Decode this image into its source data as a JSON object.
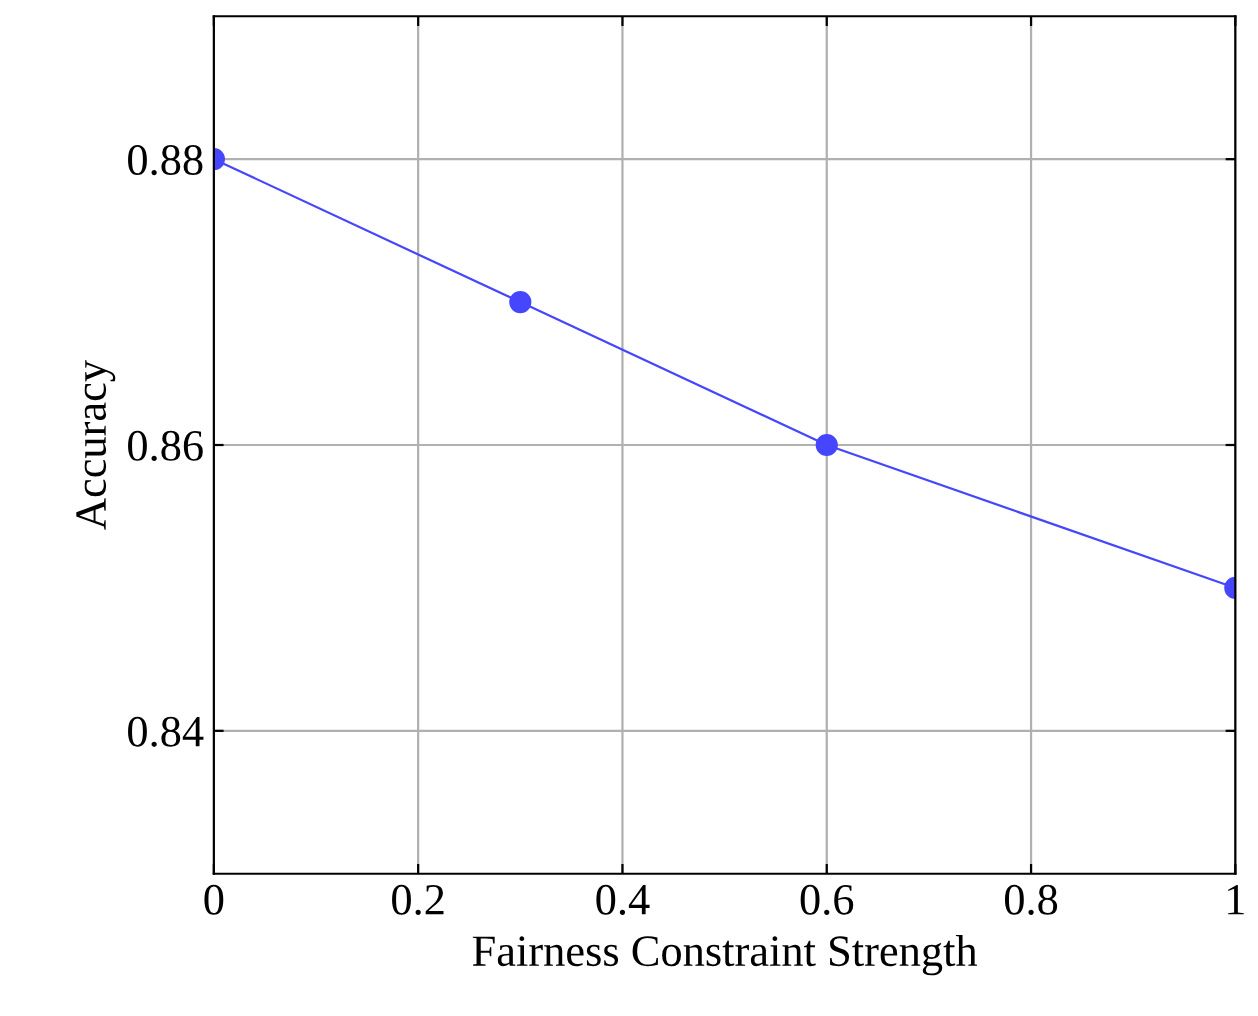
{
  "chart_data": {
    "type": "line",
    "xlabel": "Fairness Constraint Strength",
    "ylabel": "Accuracy",
    "x": [
      0,
      0.3,
      0.6,
      1
    ],
    "series": [
      {
        "color": "#4646ff",
        "values": [
          0.88,
          0.87,
          0.86,
          0.85
        ]
      }
    ],
    "xlim": [
      0,
      1
    ],
    "xticks": [
      0,
      0.2,
      0.4,
      0.6,
      0.8,
      1
    ],
    "ylim": [
      0.83,
      0.89
    ],
    "yticks": [
      {
        "value": 0.84,
        "label": "0.84"
      },
      {
        "value": 0.86,
        "label": "0.86"
      },
      {
        "value": 0.88,
        "label": "0.88"
      }
    ],
    "grid": true,
    "marker": "circle",
    "line_style": "solid"
  }
}
